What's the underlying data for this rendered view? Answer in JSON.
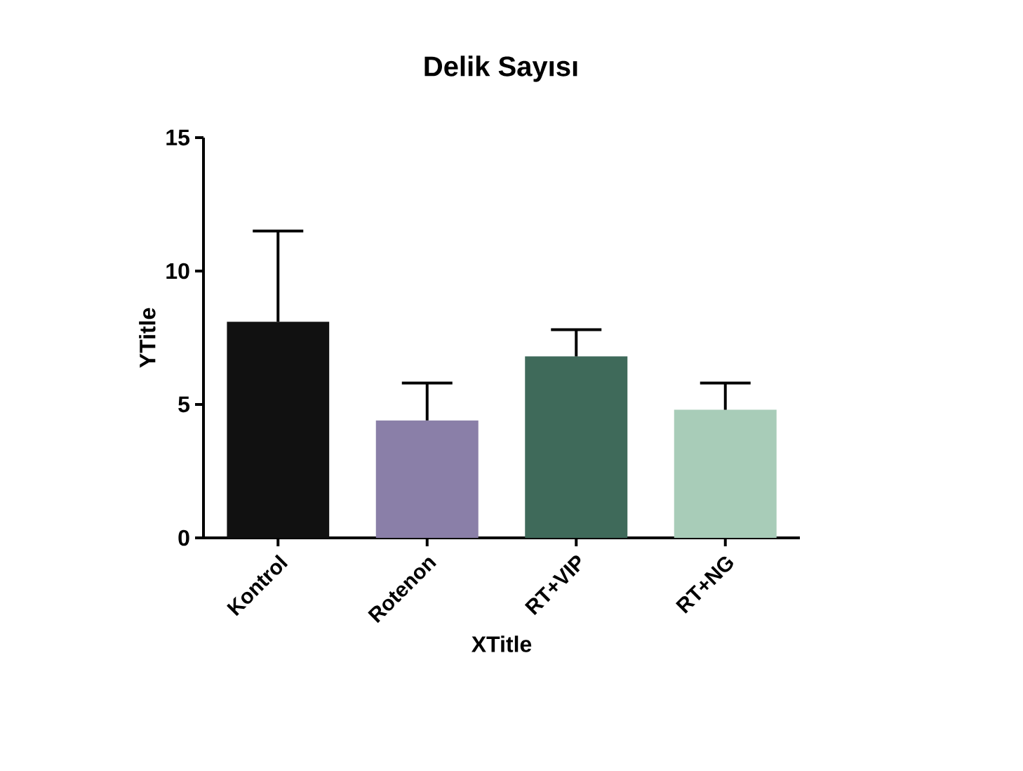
{
  "chart_data": {
    "type": "bar",
    "title": "Delik Sayısı",
    "xlabel": "XTitle",
    "ylabel": "YTitle",
    "categories": [
      "Kontrol",
      "Rotenon",
      "RT+VIP",
      "RT+NG"
    ],
    "values": [
      8.1,
      4.4,
      6.8,
      4.8
    ],
    "errors": [
      [
        8.1,
        11.5
      ],
      [
        4.4,
        5.8
      ],
      [
        6.8,
        7.8
      ],
      [
        4.8,
        5.8
      ]
    ],
    "colors": [
      "#111111",
      "#8a7fa8",
      "#3f6a5a",
      "#a8ccb8"
    ],
    "ylim": [
      0,
      15
    ],
    "yticks": [
      0,
      5,
      10,
      15
    ],
    "grid": false
  }
}
